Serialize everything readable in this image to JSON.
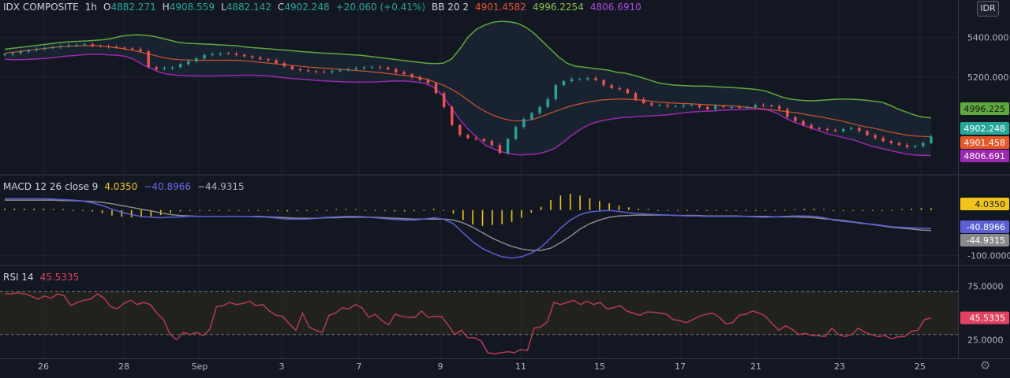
{
  "header": {
    "symbol": "IDX COMPOSITE",
    "interval": "1h",
    "open_label": "O",
    "open": "4882.271",
    "high_label": "H",
    "high": "4908.559",
    "low_label": "L",
    "low": "4882.142",
    "close_label": "C",
    "close": "4902.248",
    "change": "+20.060 (+0.41%)",
    "bb_label": "BB 20 2",
    "bb_basis": "4901.4582",
    "bb_upper": "4996.2254",
    "bb_lower": "4806.6910",
    "currency": "IDR"
  },
  "macd_header": {
    "label": "MACD 12 26 close 9",
    "hist": "4.0350",
    "macd": "−40.8966",
    "signal": "−44.9315"
  },
  "rsi_header": {
    "label": "RSI 14",
    "value": "45.5335"
  },
  "colors": {
    "up": "#26a69a",
    "down": "#ef5350",
    "bb_upper": "#5fa83c",
    "bb_basis": "#c9572e",
    "bb_lower": "#9c27b0",
    "bb_fill": "#1b2432",
    "macd": "#5b5fd3",
    "signal": "#8a8a8a",
    "hist": "#f0c419",
    "rsi": "#b33b50"
  },
  "chart_data": [
    {
      "type": "candlestick",
      "title": "IDX COMPOSITE",
      "interval": "1h",
      "x_tick_labels": [
        "26",
        "28",
        "Sep",
        "3",
        "7",
        "9",
        "11",
        "15",
        "17",
        "21",
        "23",
        "25"
      ],
      "y_ticks": [
        5400,
        5200
      ],
      "y_tick_labels": [
        "5400.000",
        "5200.000"
      ],
      "ylim": [
        4750,
        5500
      ],
      "price_tags": [
        {
          "text": "4996.225",
          "value": 4996.2254,
          "color": "#5fa83c"
        },
        {
          "text": "4902.248",
          "value": 4902.248,
          "color": "#26a69a"
        },
        {
          "text": "4901.458",
          "value": 4901.4582,
          "color": "#e8572a"
        },
        {
          "text": "4806.691",
          "value": 4806.691,
          "color": "#9c27b0"
        }
      ],
      "closes": [
        5315,
        5320,
        5328,
        5335,
        5342,
        5345,
        5350,
        5355,
        5360,
        5362,
        5365,
        5358,
        5355,
        5352,
        5348,
        5345,
        5340,
        5330,
        5250,
        5240,
        5245,
        5250,
        5265,
        5280,
        5295,
        5310,
        5315,
        5320,
        5318,
        5312,
        5305,
        5298,
        5290,
        5285,
        5270,
        5255,
        5240,
        5235,
        5230,
        5228,
        5225,
        5230,
        5235,
        5240,
        5245,
        5250,
        5250,
        5248,
        5240,
        5225,
        5215,
        5200,
        5185,
        5170,
        5120,
        5050,
        4960,
        4910,
        4895,
        4890,
        4880,
        4860,
        4820,
        4890,
        4950,
        4990,
        5020,
        5050,
        5090,
        5160,
        5180,
        5190,
        5190,
        5195,
        5185,
        5160,
        5145,
        5140,
        5120,
        5090,
        5070,
        5060,
        5060,
        5055,
        5055,
        5060,
        5060,
        5050,
        5040,
        5055,
        5050,
        5050,
        5048,
        5050,
        5060,
        5058,
        5055,
        5040,
        5000,
        4980,
        4960,
        4945,
        4940,
        4935,
        4930,
        4940,
        4945,
        4930,
        4910,
        4895,
        4880,
        4870,
        4860,
        4850,
        4855,
        4870,
        4902.248
      ],
      "bb_upper": [
        5340,
        5345,
        5350,
        5355,
        5360,
        5365,
        5370,
        5375,
        5378,
        5380,
        5382,
        5385,
        5388,
        5395,
        5405,
        5410,
        5412,
        5410,
        5405,
        5395,
        5385,
        5375,
        5370,
        5368,
        5366,
        5365,
        5362,
        5360,
        5358,
        5352,
        5348,
        5345,
        5342,
        5338,
        5335,
        5332,
        5328,
        5325,
        5322,
        5320,
        5318,
        5315,
        5312,
        5310,
        5305,
        5300,
        5295,
        5290,
        5285,
        5280,
        5275,
        5270,
        5268,
        5270,
        5290,
        5340,
        5400,
        5440,
        5460,
        5475,
        5480,
        5478,
        5470,
        5450,
        5420,
        5380,
        5340,
        5300,
        5270,
        5255,
        5250,
        5245,
        5240,
        5235,
        5225,
        5220,
        5210,
        5198,
        5185,
        5172,
        5165,
        5160,
        5158,
        5156,
        5155,
        5155,
        5152,
        5150,
        5148,
        5145,
        5142,
        5138,
        5130,
        5115,
        5100,
        5090,
        5085,
        5082,
        5082,
        5085,
        5088,
        5090,
        5090,
        5088,
        5085,
        5080,
        5075,
        5060,
        5040,
        5025,
        5010,
        5000,
        4996.2254
      ],
      "bb_basis": [
        5320,
        5325,
        5330,
        5335,
        5340,
        5345,
        5350,
        5353,
        5355,
        5357,
        5358,
        5358,
        5355,
        5350,
        5345,
        5338,
        5330,
        5320,
        5310,
        5300,
        5292,
        5288,
        5286,
        5285,
        5285,
        5285,
        5285,
        5285,
        5285,
        5282,
        5278,
        5274,
        5270,
        5266,
        5262,
        5258,
        5254,
        5250,
        5247,
        5244,
        5241,
        5238,
        5235,
        5232,
        5228,
        5224,
        5220,
        5215,
        5210,
        5205,
        5198,
        5190,
        5175,
        5160,
        5140,
        5115,
        5085,
        5055,
        5030,
        5010,
        4995,
        4985,
        4980,
        4982,
        4990,
        5005,
        5020,
        5035,
        5050,
        5062,
        5070,
        5078,
        5085,
        5088,
        5090,
        5090,
        5088,
        5085,
        5080,
        5075,
        5072,
        5070,
        5068,
        5066,
        5064,
        5062,
        5060,
        5058,
        5056,
        5052,
        5048,
        5045,
        5040,
        5035,
        5030,
        5025,
        5020,
        5012,
        5005,
        4998,
        4990,
        4982,
        4972,
        4962,
        4952,
        4945,
        4935,
        4925,
        4918,
        4910,
        4905,
        4903,
        4901.4582
      ],
      "bb_lower": [
        5290,
        5288,
        5288,
        5290,
        5292,
        5295,
        5300,
        5305,
        5308,
        5312,
        5315,
        5315,
        5312,
        5310,
        5305,
        5290,
        5265,
        5245,
        5225,
        5215,
        5210,
        5208,
        5207,
        5206,
        5206,
        5207,
        5208,
        5209,
        5210,
        5210,
        5208,
        5205,
        5200,
        5195,
        5192,
        5188,
        5185,
        5182,
        5180,
        5178,
        5176,
        5175,
        5175,
        5176,
        5178,
        5180,
        5182,
        5180,
        5175,
        5168,
        5150,
        5110,
        5050,
        4990,
        4940,
        4900,
        4860,
        4840,
        4825,
        4815,
        4810,
        4812,
        4815,
        4825,
        4840,
        4870,
        4905,
        4935,
        4960,
        4975,
        4985,
        4992,
        4998,
        5000,
        5003,
        5005,
        5008,
        5010,
        5015,
        5020,
        5025,
        5028,
        5030,
        5032,
        5035,
        5036,
        5038,
        5040,
        5040,
        5035,
        5020,
        4995,
        4975,
        4960,
        4945,
        4930,
        4915,
        4905,
        4895,
        4885,
        4870,
        4855,
        4845,
        4835,
        4825,
        4815,
        4810,
        4808,
        4806.691
      ]
    },
    {
      "type": "line",
      "title": "MACD 12 26 close 9",
      "y_tick_labels": [
        "-100.0000"
      ],
      "y_ticks": [
        -100
      ],
      "ylim": [
        -110,
        50
      ],
      "price_tags": [
        {
          "text": "4.0350",
          "value": 4.035,
          "color": "#f0c419"
        },
        {
          "text": "-40.8966",
          "value": -40.8966,
          "color": "#5b5fd3"
        },
        {
          "text": "-44.9315",
          "value": -44.9315,
          "color": "#8a8a8a"
        }
      ],
      "series": [
        {
          "name": "MACD",
          "values": [
            25,
            25,
            25,
            25,
            25,
            24,
            23,
            22,
            20,
            16,
            10,
            2,
            -5,
            -10,
            -14,
            -16,
            -17,
            -16,
            -15,
            -14,
            -14,
            -14,
            -14,
            -14,
            -14,
            -14,
            -15,
            -16,
            -18,
            -20,
            -20,
            -20,
            -18,
            -16,
            -15,
            -14,
            -14,
            -15,
            -17,
            -19,
            -21,
            -22,
            -22,
            -20,
            -17,
            -20,
            -30,
            -50,
            -70,
            -85,
            -95,
            -103,
            -106,
            -103,
            -95,
            -82,
            -62,
            -40,
            -22,
            -10,
            -4,
            -2,
            -1,
            -3,
            -6,
            -8,
            -9,
            -10,
            -11,
            -12,
            -13,
            -13,
            -14,
            -14,
            -14,
            -14,
            -14,
            -15,
            -16,
            -15,
            -14,
            -13,
            -13,
            -14,
            -17,
            -22,
            -25,
            -27,
            -30,
            -31,
            -34,
            -37,
            -38,
            -39,
            -40,
            -40.8966
          ]
        },
        {
          "name": "Signal",
          "values": [
            22,
            22,
            22,
            22,
            22,
            22,
            21,
            21,
            20,
            19,
            17,
            14,
            10,
            6,
            2,
            -2,
            -6,
            -10,
            -12,
            -13,
            -14,
            -14,
            -14,
            -14,
            -14,
            -14,
            -14,
            -15,
            -16,
            -17,
            -18,
            -18,
            -18,
            -17,
            -17,
            -16,
            -16,
            -16,
            -16,
            -17,
            -18,
            -19,
            -20,
            -20,
            -20,
            -20,
            -22,
            -28,
            -38,
            -50,
            -62,
            -72,
            -80,
            -86,
            -89,
            -89,
            -84,
            -72,
            -58,
            -42,
            -30,
            -22,
            -16,
            -13,
            -12,
            -11,
            -11,
            -11,
            -11,
            -12,
            -12,
            -12,
            -13,
            -13,
            -13,
            -13,
            -14,
            -14,
            -14,
            -15,
            -15,
            -15,
            -16,
            -17,
            -19,
            -21,
            -23,
            -26,
            -29,
            -32,
            -35,
            -38,
            -40,
            -42,
            -44,
            -44.9315
          ]
        },
        {
          "name": "Histogram",
          "values": [
            3,
            3,
            3,
            3,
            3,
            2,
            2,
            1,
            0,
            -3,
            -7,
            -12,
            -15,
            -16,
            -16,
            -14,
            -11,
            -6,
            -3,
            -1,
            0,
            0,
            0,
            0,
            0,
            0,
            -1,
            -1,
            -2,
            -3,
            -2,
            -2,
            0,
            1,
            2,
            2,
            2,
            1,
            -1,
            -2,
            -3,
            -3,
            -2,
            0,
            3,
            0,
            -8,
            -22,
            -32,
            -35,
            -33,
            -31,
            -26,
            -17,
            -6,
            7,
            22,
            32,
            36,
            32,
            26,
            20,
            15,
            10,
            6,
            3,
            2,
            1,
            0,
            0,
            -1,
            -1,
            -1,
            -1,
            -1,
            -1,
            0,
            -1,
            -2,
            0,
            1,
            2,
            3,
            3,
            2,
            -1,
            -2,
            -1,
            -1,
            1,
            1,
            1,
            2,
            3,
            4,
            4.035
          ]
        }
      ]
    },
    {
      "type": "line",
      "title": "RSI 14",
      "y_ticks": [
        75,
        25
      ],
      "y_tick_labels": [
        "75.0000",
        "25.0000"
      ],
      "ylim": [
        10,
        85
      ],
      "bands": [
        70,
        30
      ],
      "price_tags": [
        {
          "text": "45.5335",
          "value": 45.5335,
          "color": "#e0425f"
        }
      ],
      "series": [
        {
          "name": "RSI",
          "values": [
            68,
            68,
            69,
            68,
            66,
            63,
            66,
            64,
            68,
            66,
            57,
            60,
            62,
            63,
            68,
            64,
            56,
            54,
            59,
            62,
            58,
            60,
            58,
            50,
            44,
            30,
            25,
            32,
            30,
            32,
            29,
            35,
            56,
            57,
            60,
            58,
            59,
            61,
            57,
            58,
            52,
            48,
            47,
            40,
            34,
            50,
            37,
            34,
            32,
            48,
            50,
            55,
            54,
            58,
            55,
            46,
            49,
            43,
            39,
            49,
            47,
            46,
            46,
            52,
            46,
            47,
            47,
            39,
            30,
            34,
            27,
            27,
            24,
            13,
            12,
            13,
            14,
            13,
            16,
            15,
            36,
            37,
            42,
            60,
            58,
            60,
            62,
            58,
            61,
            58,
            60,
            54,
            55,
            57,
            52,
            50,
            48,
            51,
            51,
            50,
            49,
            44,
            43,
            41,
            44,
            47,
            49,
            50,
            46,
            40,
            41,
            48,
            49,
            52,
            50,
            47,
            40,
            34,
            38,
            35,
            30,
            31,
            29,
            29,
            28,
            36,
            30,
            28,
            30,
            36,
            32,
            30,
            28,
            29,
            26,
            28,
            28,
            33,
            34,
            44,
            45.5335
          ]
        }
      ]
    }
  ]
}
